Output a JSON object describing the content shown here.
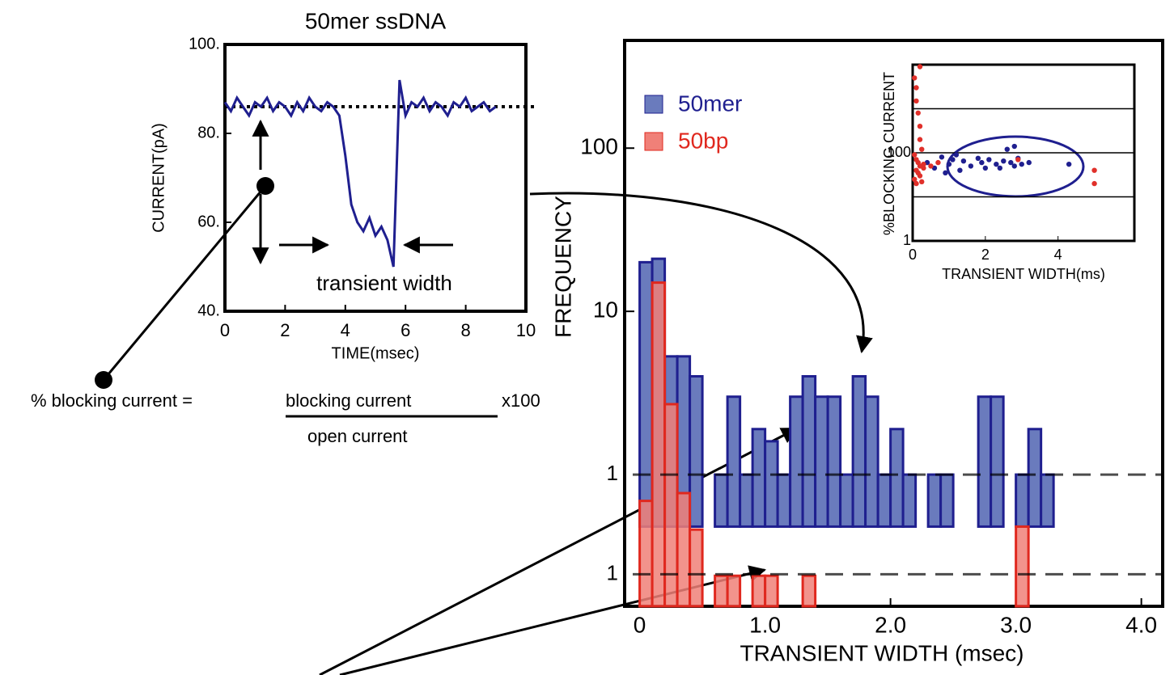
{
  "chart_data": [
    {
      "type": "line",
      "title": "50mer ssDNA",
      "x_label": "TIME(msec)",
      "y_label": "CURRENT(pA)",
      "annotation": "transient width",
      "xlim": [
        0,
        10
      ],
      "xticks": [
        0,
        2,
        4,
        6,
        8,
        10
      ],
      "ylim": [
        40,
        100
      ],
      "yticks": [
        {
          "value": 100,
          "label": "100."
        },
        {
          "value": 80,
          "label": "80."
        },
        {
          "value": 60,
          "label": "60."
        },
        {
          "value": 40,
          "label": "40."
        }
      ],
      "baseline": 86,
      "color": "#1f1f8f",
      "x": [
        0,
        0.2,
        0.4,
        0.6,
        0.8,
        1.0,
        1.2,
        1.4,
        1.6,
        1.8,
        2.0,
        2.2,
        2.4,
        2.6,
        2.8,
        3.0,
        3.2,
        3.4,
        3.6,
        3.8,
        4.0,
        4.2,
        4.4,
        4.6,
        4.8,
        5.0,
        5.2,
        5.4,
        5.6,
        5.8,
        6.0,
        6.2,
        6.4,
        6.6,
        6.8,
        7.0,
        7.2,
        7.4,
        7.6,
        7.8,
        8.0,
        8.2,
        8.4,
        8.6,
        8.8,
        9.0
      ],
      "values": [
        87,
        85,
        88,
        86,
        84,
        87,
        86,
        88,
        85,
        87,
        86,
        84,
        87,
        85,
        88,
        86,
        85,
        87,
        86,
        84,
        75,
        64,
        60,
        58,
        61,
        57,
        59,
        56,
        50,
        92,
        84,
        87,
        86,
        88,
        85,
        87,
        86,
        84,
        87,
        86,
        88,
        85,
        86,
        87,
        85,
        86
      ]
    },
    {
      "type": "histogram",
      "x_label": "TRANSIENT WIDTH (msec)",
      "y_label": "FREQUENCY",
      "log_y": true,
      "xlim": [
        -0.12,
        4.17
      ],
      "xticks": [
        0,
        {
          "value": 1,
          "label": "1.0"
        },
        {
          "value": 2,
          "label": "2.0"
        },
        {
          "value": 3,
          "label": "3.0"
        },
        {
          "value": 4,
          "label": "4.0"
        }
      ],
      "ylim": [
        0.156,
        457
      ],
      "yticks": [
        100,
        10
      ],
      "ref_lines": [
        {
          "value": 1,
          "label": "1"
        },
        {
          "value": 0.245,
          "label": "1"
        }
      ],
      "bins": [
        0,
        0.1,
        0.2,
        0.3,
        0.4,
        0.5,
        0.6,
        0.7,
        0.8,
        0.9,
        1.0,
        1.1,
        1.2,
        1.3,
        1.4,
        1.5,
        1.6,
        1.7,
        1.8,
        1.9,
        2.0,
        2.1,
        2.2,
        2.3,
        2.4,
        2.5,
        2.6,
        2.7,
        2.8,
        2.9,
        3.0,
        3.1,
        3.2,
        3.3
      ],
      "series": [
        {
          "name": "50mer",
          "color": "#6a7bbd",
          "edge": "#1f1f8f",
          "baseline": 0.48,
          "values": [
            20,
            21,
            5.3,
            5.3,
            4,
            0,
            1,
            3,
            1,
            1.9,
            1.6,
            1,
            3,
            4,
            3,
            3,
            1,
            4,
            3,
            1,
            1.9,
            1,
            0,
            1,
            1,
            0,
            0,
            3,
            3,
            0,
            1,
            1.9,
            1
          ]
        },
        {
          "name": "50bp",
          "color": "#f08078",
          "edge": "#e0281e",
          "values": [
            0.69,
            15,
            2.7,
            0.77,
            0.46,
            0,
            0.24,
            0.24,
            0,
            0.24,
            0.24,
            0,
            0,
            0.24,
            0,
            0,
            0,
            0,
            0,
            0,
            0,
            0,
            0,
            0,
            0,
            0,
            0,
            0,
            0,
            0,
            0.48,
            0,
            0
          ]
        }
      ]
    },
    {
      "type": "scatter",
      "x_label": "TRANSIENT WIDTH(ms)",
      "y_label": "%BLOCKING CURRENT",
      "log_y": true,
      "xlim": [
        0,
        6.1
      ],
      "xticks": [
        0,
        2,
        4
      ],
      "ylim": [
        1,
        10000
      ],
      "yticks": [
        100,
        1
      ],
      "hlines": [
        10,
        100,
        1000
      ],
      "series": [
        {
          "name": "50mer",
          "color": "#1f1f8f",
          "x": [
            0.4,
            0.6,
            0.8,
            1.0,
            1.1,
            1.3,
            1.4,
            1.6,
            1.8,
            1.9,
            2.0,
            2.1,
            2.3,
            2.5,
            2.6,
            2.7,
            2.8,
            2.9,
            3.0,
            3.2,
            4.3,
            1.2,
            0.9,
            2.4,
            2.8
          ],
          "values": [
            60,
            45,
            80,
            55,
            70,
            40,
            65,
            50,
            75,
            60,
            45,
            70,
            55,
            65,
            120,
            60,
            50,
            75,
            55,
            60,
            55,
            90,
            35,
            45,
            140
          ]
        },
        {
          "name": "50bp",
          "color": "#e0302a",
          "x": [
            0.05,
            0.1,
            0.1,
            0.15,
            0.2,
            0.2,
            0.25,
            0.05,
            0.1,
            0.15,
            0.2,
            0.3,
            0.1,
            0.15,
            0.2,
            0.05,
            0.25,
            0.1,
            0.3,
            0.5,
            0.7,
            5.0,
            5.0,
            2.9,
            0.2
          ],
          "values": [
            5000,
            3000,
            1500,
            800,
            400,
            200,
            120,
            90,
            70,
            60,
            50,
            45,
            40,
            35,
            30,
            25,
            22,
            20,
            55,
            50,
            60,
            40,
            20,
            70,
            9000
          ]
        }
      ]
    }
  ],
  "formula": {
    "lhs": "% blocking current =",
    "numerator": "blocking current",
    "multiplier": "x100",
    "denominator": "open current"
  }
}
